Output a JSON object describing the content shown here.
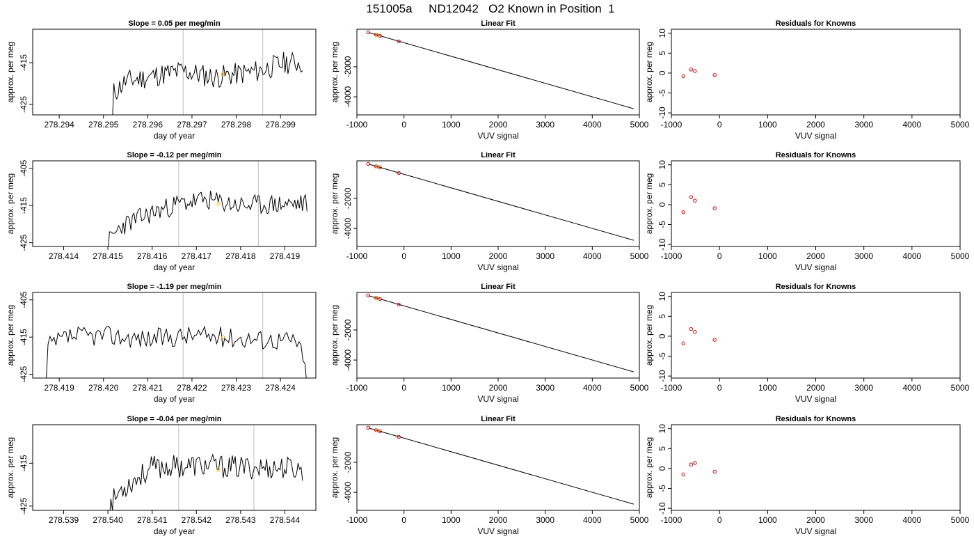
{
  "figure_title": "151005a     ND12042   O2 Known in Position  1",
  "colors": {
    "trace": "#000000",
    "marker_orange": "#FFA500",
    "marker_red": "#CC0000",
    "vline": "#BEBEBE",
    "fitline": "#000000"
  },
  "chart_data": [
    {
      "panel": "row1-time",
      "type": "line",
      "title": "Slope =  0.05  per meg/min",
      "xlabel": "day of year",
      "ylabel": "approx. per meg",
      "xlim": [
        278.2934,
        278.2998
      ],
      "ylim": [
        -427.5,
        -407
      ],
      "xticks": [
        278.294,
        278.295,
        278.296,
        278.297,
        278.298,
        278.299
      ],
      "xtick_labels": [
        "278.294",
        "278.295",
        "278.296",
        "278.297",
        "278.298",
        "278.299"
      ],
      "yticks": [
        -415,
        -425
      ],
      "ytick_labels": [
        "-415",
        "-425"
      ],
      "vlines": [
        278.2968,
        278.2986
      ],
      "marker": {
        "x": 278.2977,
        "y": -417.8
      },
      "start": 278.2952,
      "end": 278.2995,
      "seed": 11,
      "series_keypoints": [
        [
          278.2952,
          -422.5
        ],
        [
          278.2955,
          -419.5
        ],
        [
          278.2962,
          -418
        ],
        [
          278.2968,
          -417
        ],
        [
          278.2975,
          -418.5
        ],
        [
          278.2985,
          -417
        ],
        [
          278.2991,
          -415
        ],
        [
          278.2994,
          -415
        ]
      ]
    },
    {
      "panel": "row1-fit",
      "type": "scatter",
      "title": "Linear Fit",
      "xlabel": "VUV signal",
      "ylabel": "approx. per meg",
      "xlim": [
        -1000,
        5000
      ],
      "ylim": [
        -5200,
        500
      ],
      "xticks": [
        -1000,
        0,
        1000,
        2000,
        3000,
        4000,
        5000
      ],
      "xtick_labels": [
        "-1000",
        "0",
        "1000",
        "2000",
        "3000",
        "4000",
        "5000"
      ],
      "yticks": [
        -2000,
        -4000
      ],
      "ytick_labels": [
        "-2000",
        "-4000"
      ],
      "line": [
        [
          -750,
          280
        ],
        [
          4880,
          -4790
        ]
      ],
      "points": [
        [
          -760,
          300
        ],
        [
          -590,
          130
        ],
        [
          -510,
          60
        ],
        [
          -110,
          -310
        ]
      ],
      "orange_points": [
        [
          -570,
          120
        ]
      ]
    },
    {
      "panel": "row1-resid",
      "type": "scatter",
      "title": "Residuals for Knowns",
      "xlabel": "VUV signal",
      "ylabel": "approx. per meg",
      "xlim": [
        -1000,
        5000
      ],
      "ylim": [
        -10.5,
        11
      ],
      "xticks": [
        -1000,
        0,
        1000,
        2000,
        3000,
        4000,
        5000
      ],
      "xtick_labels": [
        "-1000",
        "0",
        "1000",
        "2000",
        "3000",
        "4000",
        "5000"
      ],
      "yticks": [
        10,
        5,
        0,
        -5,
        -10
      ],
      "ytick_labels": [
        "10",
        "5",
        "0",
        "-5",
        "-10"
      ],
      "points": [
        [
          -750,
          -0.8
        ],
        [
          -590,
          0.9
        ],
        [
          -510,
          0.5
        ],
        [
          -100,
          -0.5
        ]
      ]
    },
    {
      "panel": "row2-time",
      "type": "line",
      "title": "Slope =  -0.12  per meg/min",
      "xlabel": "day of year",
      "ylabel": "approx. per meg",
      "xlim": [
        278.4133,
        278.4197
      ],
      "ylim": [
        -426,
        -403
      ],
      "xticks": [
        278.414,
        278.415,
        278.416,
        278.417,
        278.418,
        278.419
      ],
      "xtick_labels": [
        "278.414",
        "278.415",
        "278.416",
        "278.417",
        "278.418",
        "278.419"
      ],
      "yticks": [
        -405,
        -415,
        -425
      ],
      "ytick_labels": [
        "-405",
        "-415",
        "-425"
      ],
      "vlines": [
        278.4166,
        278.4184
      ],
      "marker": {
        "x": 278.4175,
        "y": -414.5
      },
      "start": 278.415,
      "end": 278.4195,
      "seed": 23,
      "series_keypoints": [
        [
          278.415,
          -425
        ],
        [
          278.4153,
          -420.5
        ],
        [
          278.416,
          -417
        ],
        [
          278.4166,
          -414.5
        ],
        [
          278.4172,
          -413.5
        ],
        [
          278.418,
          -415
        ],
        [
          278.4195,
          -414.5
        ]
      ]
    },
    {
      "panel": "row2-fit",
      "type": "scatter",
      "title": "Linear Fit",
      "xlabel": "VUV signal",
      "ylabel": "approx. per meg",
      "xlim": [
        -1000,
        5000
      ],
      "ylim": [
        -5200,
        500
      ],
      "xticks": [
        -1000,
        0,
        1000,
        2000,
        3000,
        4000,
        5000
      ],
      "xtick_labels": [
        "-1000",
        "0",
        "1000",
        "2000",
        "3000",
        "4000",
        "5000"
      ],
      "yticks": [
        -2000,
        -4000
      ],
      "ytick_labels": [
        "-2000",
        "-4000"
      ],
      "line": [
        [
          -750,
          280
        ],
        [
          4880,
          -4790
        ]
      ],
      "points": [
        [
          -760,
          300
        ],
        [
          -590,
          130
        ],
        [
          -510,
          60
        ],
        [
          -110,
          -310
        ]
      ],
      "orange_points": [
        [
          -570,
          120
        ]
      ]
    },
    {
      "panel": "row2-resid",
      "type": "scatter",
      "title": "Residuals for Knowns",
      "xlabel": "VUV signal",
      "ylabel": "approx. per meg",
      "xlim": [
        -1000,
        5000
      ],
      "ylim": [
        -10.5,
        11
      ],
      "xticks": [
        -1000,
        0,
        1000,
        2000,
        3000,
        4000,
        5000
      ],
      "xtick_labels": [
        "-1000",
        "0",
        "1000",
        "2000",
        "3000",
        "4000",
        "5000"
      ],
      "yticks": [
        10,
        5,
        0,
        -5,
        -10
      ],
      "ytick_labels": [
        "10",
        "5",
        "0",
        "-5",
        "-10"
      ],
      "points": [
        [
          -750,
          -1.9
        ],
        [
          -590,
          1.9
        ],
        [
          -510,
          1.0
        ],
        [
          -100,
          -0.9
        ]
      ]
    },
    {
      "panel": "row3-time",
      "type": "line",
      "title": "Slope =  -1.19  per meg/min",
      "xlabel": "day of year",
      "ylabel": "approx. per meg",
      "xlim": [
        278.4184,
        278.4248
      ],
      "ylim": [
        -426,
        -403
      ],
      "xticks": [
        278.419,
        278.42,
        278.421,
        278.422,
        278.423,
        278.424
      ],
      "xtick_labels": [
        "278.419",
        "278.420",
        "278.421",
        "278.422",
        "278.423",
        "278.424"
      ],
      "yticks": [
        -405,
        -415,
        -425
      ],
      "ytick_labels": [
        "-405",
        "-415",
        "-425"
      ],
      "vlines": [
        278.4218,
        278.4236
      ],
      "marker": {
        "x": 278.4227,
        "y": -415
      },
      "start": 278.4187,
      "end": 278.4246,
      "seed": 37,
      "series_keypoints": [
        [
          278.4187,
          -418
        ],
        [
          278.4192,
          -415
        ],
        [
          278.42,
          -414.5
        ],
        [
          278.421,
          -415.5
        ],
        [
          278.422,
          -414.5
        ],
        [
          278.4235,
          -415.5
        ],
        [
          278.4244,
          -416
        ],
        [
          278.4246,
          -426
        ]
      ]
    },
    {
      "panel": "row3-fit",
      "type": "scatter",
      "title": "Linear Fit",
      "xlabel": "VUV signal",
      "ylabel": "approx. per meg",
      "xlim": [
        -1000,
        5000
      ],
      "ylim": [
        -5200,
        500
      ],
      "xticks": [
        -1000,
        0,
        1000,
        2000,
        3000,
        4000,
        5000
      ],
      "xtick_labels": [
        "-1000",
        "0",
        "1000",
        "2000",
        "3000",
        "4000",
        "5000"
      ],
      "yticks": [
        -2000,
        -4000
      ],
      "ytick_labels": [
        "-2000",
        "-4000"
      ],
      "line": [
        [
          -750,
          280
        ],
        [
          4880,
          -4790
        ]
      ],
      "points": [
        [
          -760,
          300
        ],
        [
          -590,
          130
        ],
        [
          -510,
          60
        ],
        [
          -110,
          -310
        ]
      ],
      "orange_points": [
        [
          -570,
          120
        ]
      ]
    },
    {
      "panel": "row3-resid",
      "type": "scatter",
      "title": "Residuals for Knowns",
      "xlabel": "VUV signal",
      "ylabel": "approx. per meg",
      "xlim": [
        -1000,
        5000
      ],
      "ylim": [
        -10.5,
        11
      ],
      "xticks": [
        -1000,
        0,
        1000,
        2000,
        3000,
        4000,
        5000
      ],
      "xtick_labels": [
        "-1000",
        "0",
        "1000",
        "2000",
        "3000",
        "4000",
        "5000"
      ],
      "yticks": [
        10,
        5,
        0,
        -5,
        -10
      ],
      "ytick_labels": [
        "10",
        "5",
        "0",
        "-5",
        "-10"
      ],
      "points": [
        [
          -750,
          -1.8
        ],
        [
          -590,
          1.8
        ],
        [
          -510,
          1.1
        ],
        [
          -100,
          -0.9
        ]
      ]
    },
    {
      "panel": "row4-time",
      "type": "line",
      "title": "Slope =  -0.04  per meg/min",
      "xlabel": "day of year",
      "ylabel": "approx. per meg",
      "xlim": [
        278.5383,
        278.5447
      ],
      "ylim": [
        -426,
        -406
      ],
      "xticks": [
        278.539,
        278.54,
        278.541,
        278.542,
        278.543,
        278.544
      ],
      "xtick_labels": [
        "278.539",
        "278.540",
        "278.541",
        "278.542",
        "278.543",
        "278.544"
      ],
      "yticks": [
        -415,
        -425
      ],
      "ytick_labels": [
        "-415",
        "-425"
      ],
      "vlines": [
        278.5416,
        278.5433
      ],
      "marker": {
        "x": 278.5425,
        "y": -416.5
      },
      "start": 278.54,
      "end": 278.5444,
      "seed": 53,
      "series_keypoints": [
        [
          278.54,
          -425.5
        ],
        [
          278.5403,
          -421
        ],
        [
          278.541,
          -416
        ],
        [
          278.542,
          -415.5
        ],
        [
          278.543,
          -416
        ],
        [
          278.544,
          -416
        ],
        [
          278.5444,
          -416.5
        ]
      ]
    },
    {
      "panel": "row4-fit",
      "type": "scatter",
      "title": "Linear Fit",
      "xlabel": "VUV signal",
      "ylabel": "approx. per meg",
      "xlim": [
        -1000,
        5000
      ],
      "ylim": [
        -5200,
        500
      ],
      "xticks": [
        -1000,
        0,
        1000,
        2000,
        3000,
        4000,
        5000
      ],
      "xtick_labels": [
        "-1000",
        "0",
        "1000",
        "2000",
        "3000",
        "4000",
        "5000"
      ],
      "yticks": [
        -2000,
        -4000
      ],
      "ytick_labels": [
        "-2000",
        "-4000"
      ],
      "line": [
        [
          -750,
          280
        ],
        [
          4880,
          -4790
        ]
      ],
      "points": [
        [
          -760,
          300
        ],
        [
          -590,
          130
        ],
        [
          -510,
          60
        ],
        [
          -110,
          -310
        ]
      ],
      "orange_points": [
        [
          -570,
          120
        ]
      ]
    },
    {
      "panel": "row4-resid",
      "type": "scatter",
      "title": "Residuals for Knowns",
      "xlabel": "VUV signal",
      "ylabel": "approx. per meg",
      "xlim": [
        -1000,
        5000
      ],
      "ylim": [
        -10.5,
        11
      ],
      "xticks": [
        -1000,
        0,
        1000,
        2000,
        3000,
        4000,
        5000
      ],
      "xtick_labels": [
        "-1000",
        "0",
        "1000",
        "2000",
        "3000",
        "4000",
        "5000"
      ],
      "yticks": [
        10,
        5,
        0,
        -5,
        -10
      ],
      "ytick_labels": [
        "10",
        "5",
        "0",
        "-5",
        "-10"
      ],
      "points": [
        [
          -750,
          -1.5
        ],
        [
          -590,
          1.0
        ],
        [
          -510,
          1.4
        ],
        [
          -100,
          -0.8
        ]
      ]
    }
  ]
}
